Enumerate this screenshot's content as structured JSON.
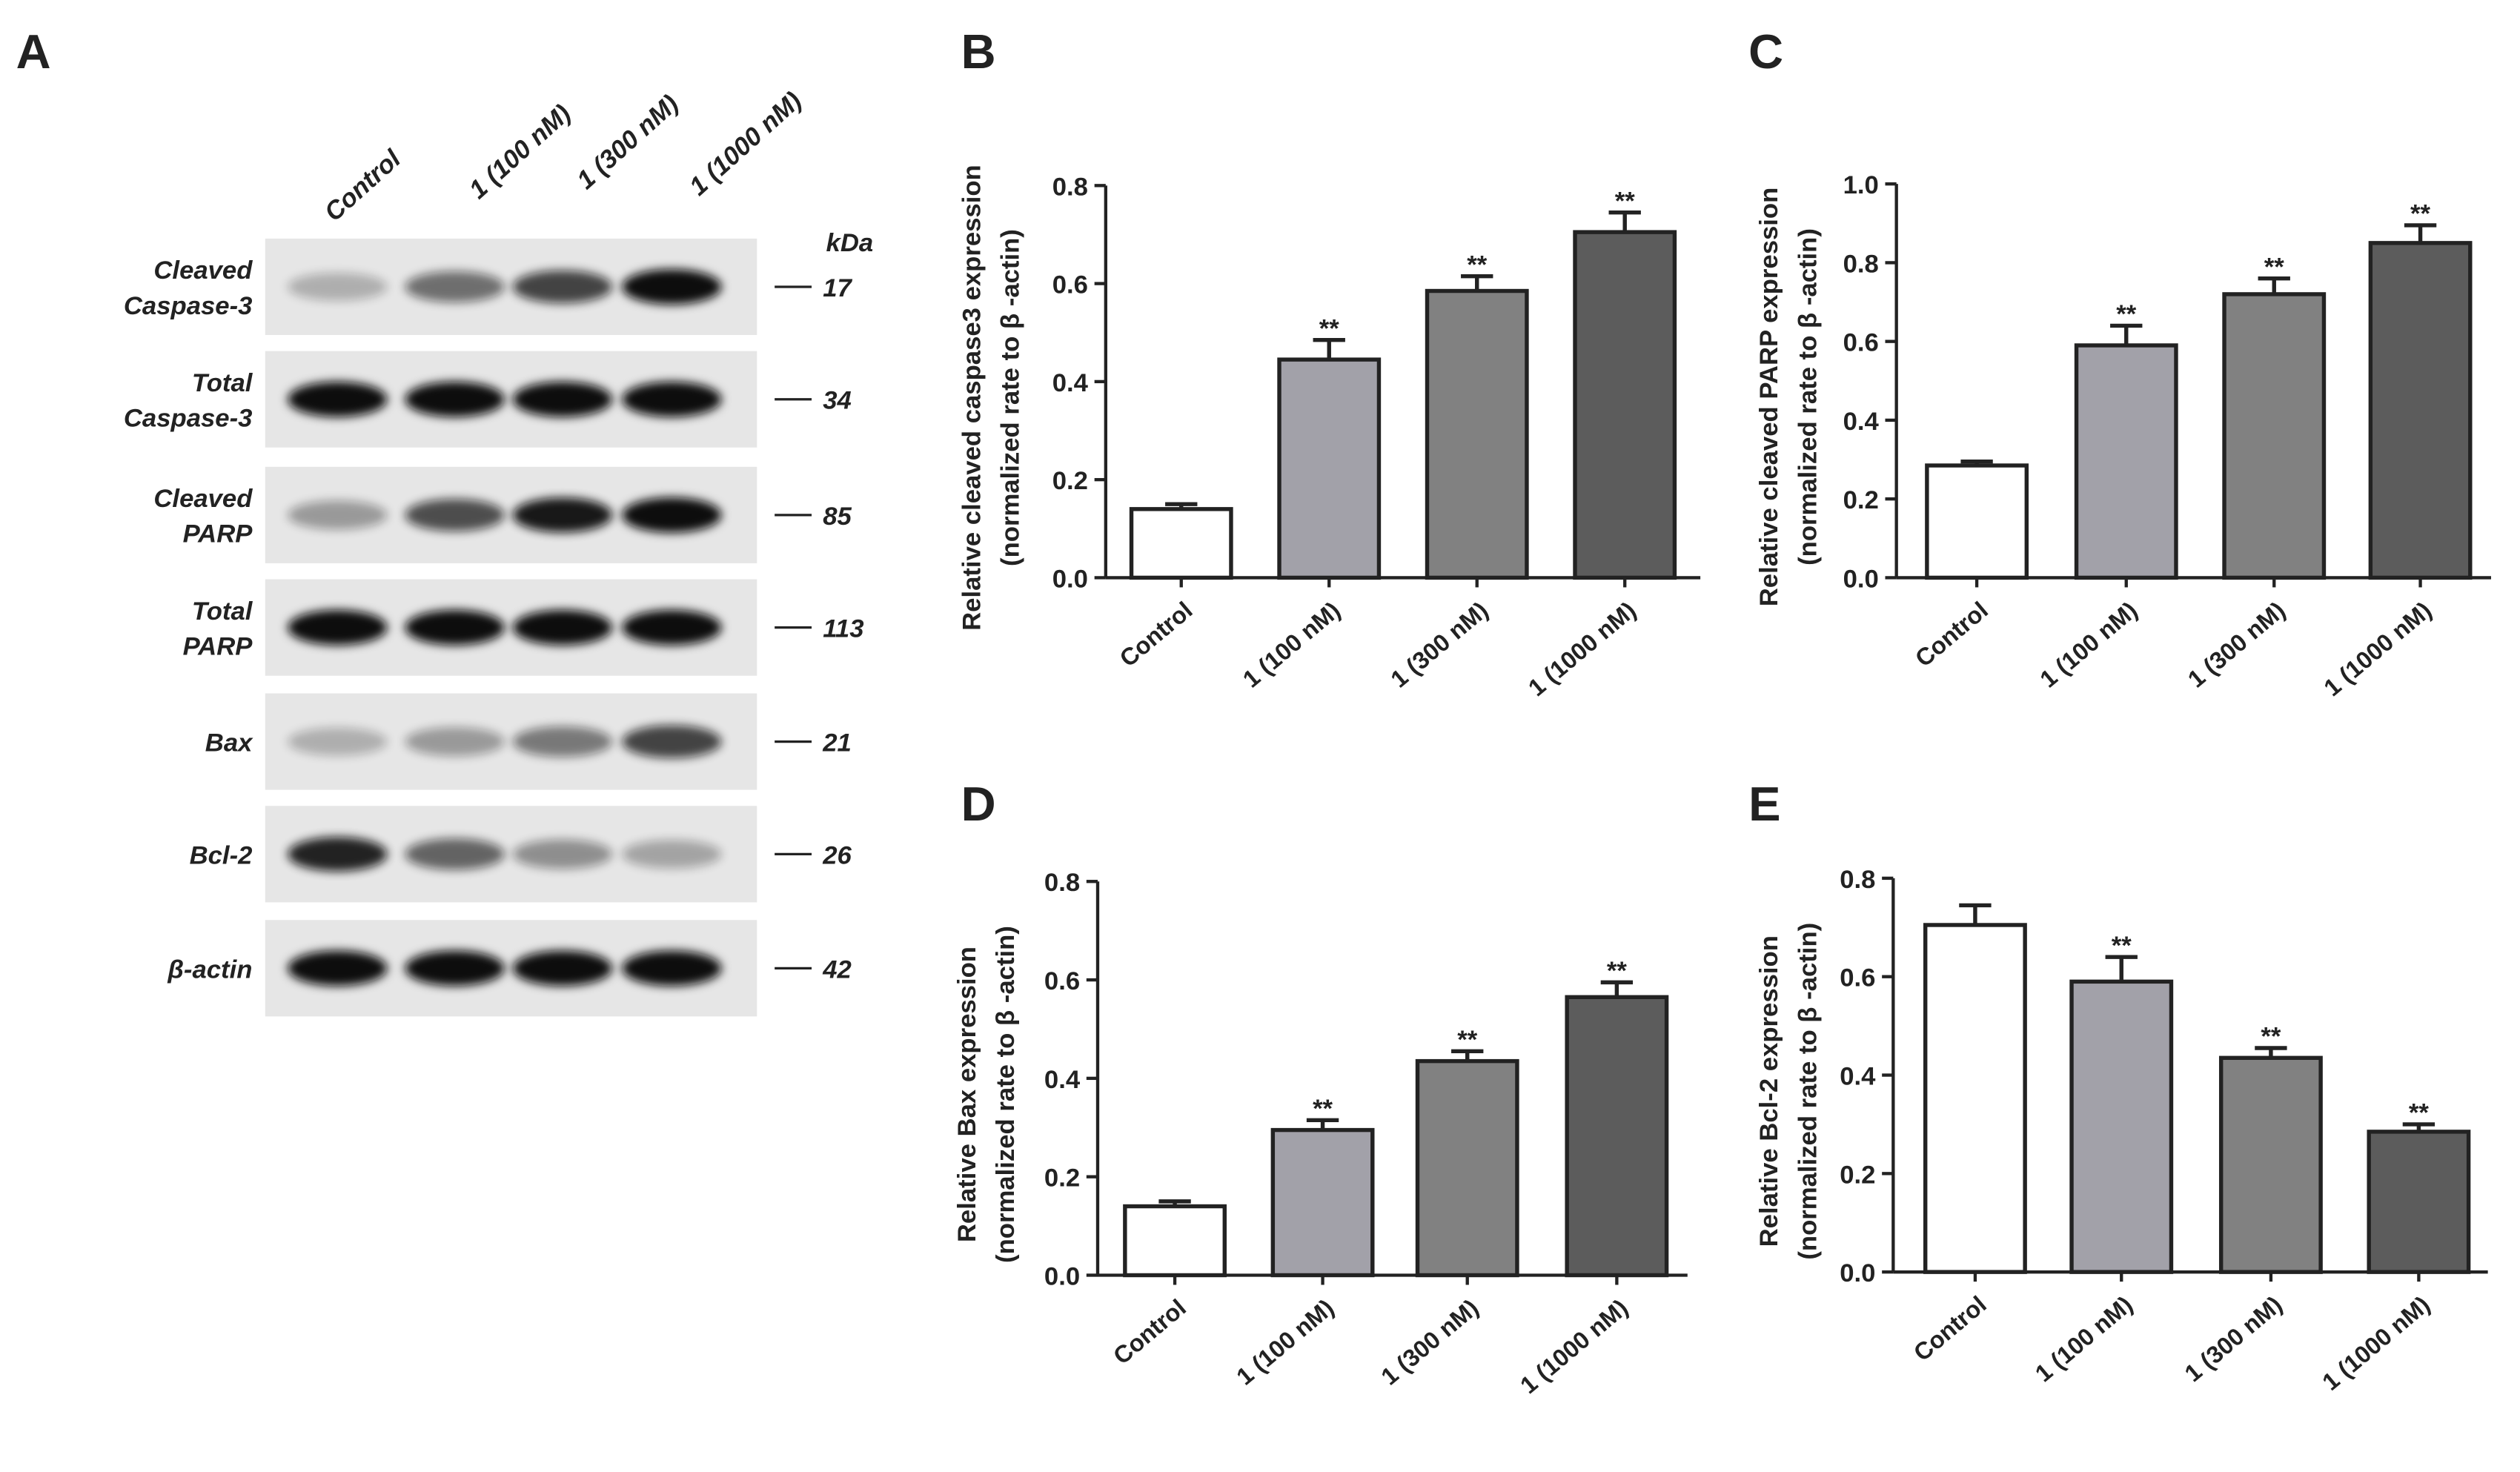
{
  "blot": {
    "panel": "A",
    "lanes": [
      "Control",
      "1 (100 nM)",
      "1 (300 nM)",
      "1 (1000 nM)"
    ],
    "kda_header": "kDa",
    "rows": [
      {
        "label": [
          "Cleaved",
          "Caspase-3"
        ],
        "kda": 17
      },
      {
        "label": [
          "Total",
          "Caspase-3"
        ],
        "kda": 34
      },
      {
        "label": [
          "Cleaved",
          "PARP"
        ],
        "kda": 85
      },
      {
        "label": [
          "Total",
          "PARP"
        ],
        "kda": 113
      },
      {
        "label": [
          "Bax"
        ],
        "kda": 21
      },
      {
        "label": [
          "Bcl-2"
        ],
        "kda": 26
      },
      {
        "label": [
          "β-actin"
        ],
        "kda": 42
      }
    ]
  },
  "chart_data": [
    {
      "type": "bar",
      "panel": "B",
      "ylabel": [
        "Relative cleaved caspase3 expression",
        "(normalized rate to β -actin)"
      ],
      "categories": [
        "Control",
        "1 (100 nM)",
        "1 (300 nM)",
        "1 (1000 nM)"
      ],
      "values": [
        0.14,
        0.445,
        0.585,
        0.705
      ],
      "errors": [
        0.01,
        0.04,
        0.03,
        0.04
      ],
      "colors": [
        "#ffffff",
        "#a2a1a9",
        "#818181",
        "#5c5c5c"
      ],
      "ylim": [
        0,
        0.8
      ],
      "yticks": [
        {
          "value": 0,
          "label": "0.0"
        },
        0.2,
        0.4,
        0.6,
        0.8
      ],
      "annotations": [
        {
          "category": "1 (100 nM)",
          "text": "**"
        },
        {
          "category": "1 (300 nM)",
          "text": "**"
        },
        {
          "category": "1 (1000 nM)",
          "text": "**"
        }
      ]
    },
    {
      "type": "bar",
      "panel": "C",
      "ylabel": [
        "Relative cleaved PARP expression",
        "(normalized rate to β -actin)"
      ],
      "categories": [
        "Control",
        "1 (100 nM)",
        "1 (300 nM)",
        "1 (1000 nM)"
      ],
      "values": [
        0.285,
        0.59,
        0.72,
        0.85
      ],
      "errors": [
        0.01,
        0.05,
        0.04,
        0.045
      ],
      "colors": [
        "#ffffff",
        "#a2a1a9",
        "#818181",
        "#5c5c5c"
      ],
      "ylim": [
        0,
        1
      ],
      "yticks": [
        {
          "value": 0,
          "label": "0.0"
        },
        0.2,
        0.4,
        0.6,
        0.8,
        {
          "value": 1,
          "label": "1.0"
        }
      ],
      "annotations": [
        {
          "category": "1 (100 nM)",
          "text": "**"
        },
        {
          "category": "1 (300 nM)",
          "text": "**"
        },
        {
          "category": "1 (1000 nM)",
          "text": "**"
        }
      ]
    },
    {
      "type": "bar",
      "panel": "D",
      "ylabel": [
        "Relative Bax expression",
        "(normalized rate to β -actin)"
      ],
      "categories": [
        "Control",
        "1 (100 nM)",
        "1 (300 nM)",
        "1 (1000 nM)"
      ],
      "values": [
        0.14,
        0.295,
        0.435,
        0.565
      ],
      "errors": [
        0.01,
        0.02,
        0.02,
        0.03
      ],
      "colors": [
        "#ffffff",
        "#a2a1a9",
        "#818181",
        "#5c5c5c"
      ],
      "ylim": [
        0,
        0.8
      ],
      "yticks": [
        {
          "value": 0,
          "label": "0.0"
        },
        0.2,
        0.4,
        0.6,
        0.8
      ],
      "annotations": [
        {
          "category": "1 (100 nM)",
          "text": "**"
        },
        {
          "category": "1 (300 nM)",
          "text": "**"
        },
        {
          "category": "1 (1000 nM)",
          "text": "**"
        }
      ]
    },
    {
      "type": "bar",
      "panel": "E",
      "ylabel": [
        "Relative Bcl-2 expression",
        "(normalized rate to β -actin)"
      ],
      "categories": [
        "Control",
        "1 (100 nM)",
        "1 (300 nM)",
        "1 (1000 nM)"
      ],
      "values": [
        0.705,
        0.59,
        0.435,
        0.285
      ],
      "errors": [
        0.04,
        0.05,
        0.02,
        0.015
      ],
      "colors": [
        "#ffffff",
        "#a2a1a9",
        "#818181",
        "#5c5c5c"
      ],
      "ylim": [
        0,
        0.8
      ],
      "yticks": [
        {
          "value": 0,
          "label": "0.0"
        },
        0.2,
        0.4,
        0.6,
        0.8
      ],
      "annotations": [
        {
          "category": "1 (100 nM)",
          "text": "**"
        },
        {
          "category": "1 (300 nM)",
          "text": "**"
        },
        {
          "category": "1 (1000 nM)",
          "text": "**"
        }
      ]
    }
  ]
}
